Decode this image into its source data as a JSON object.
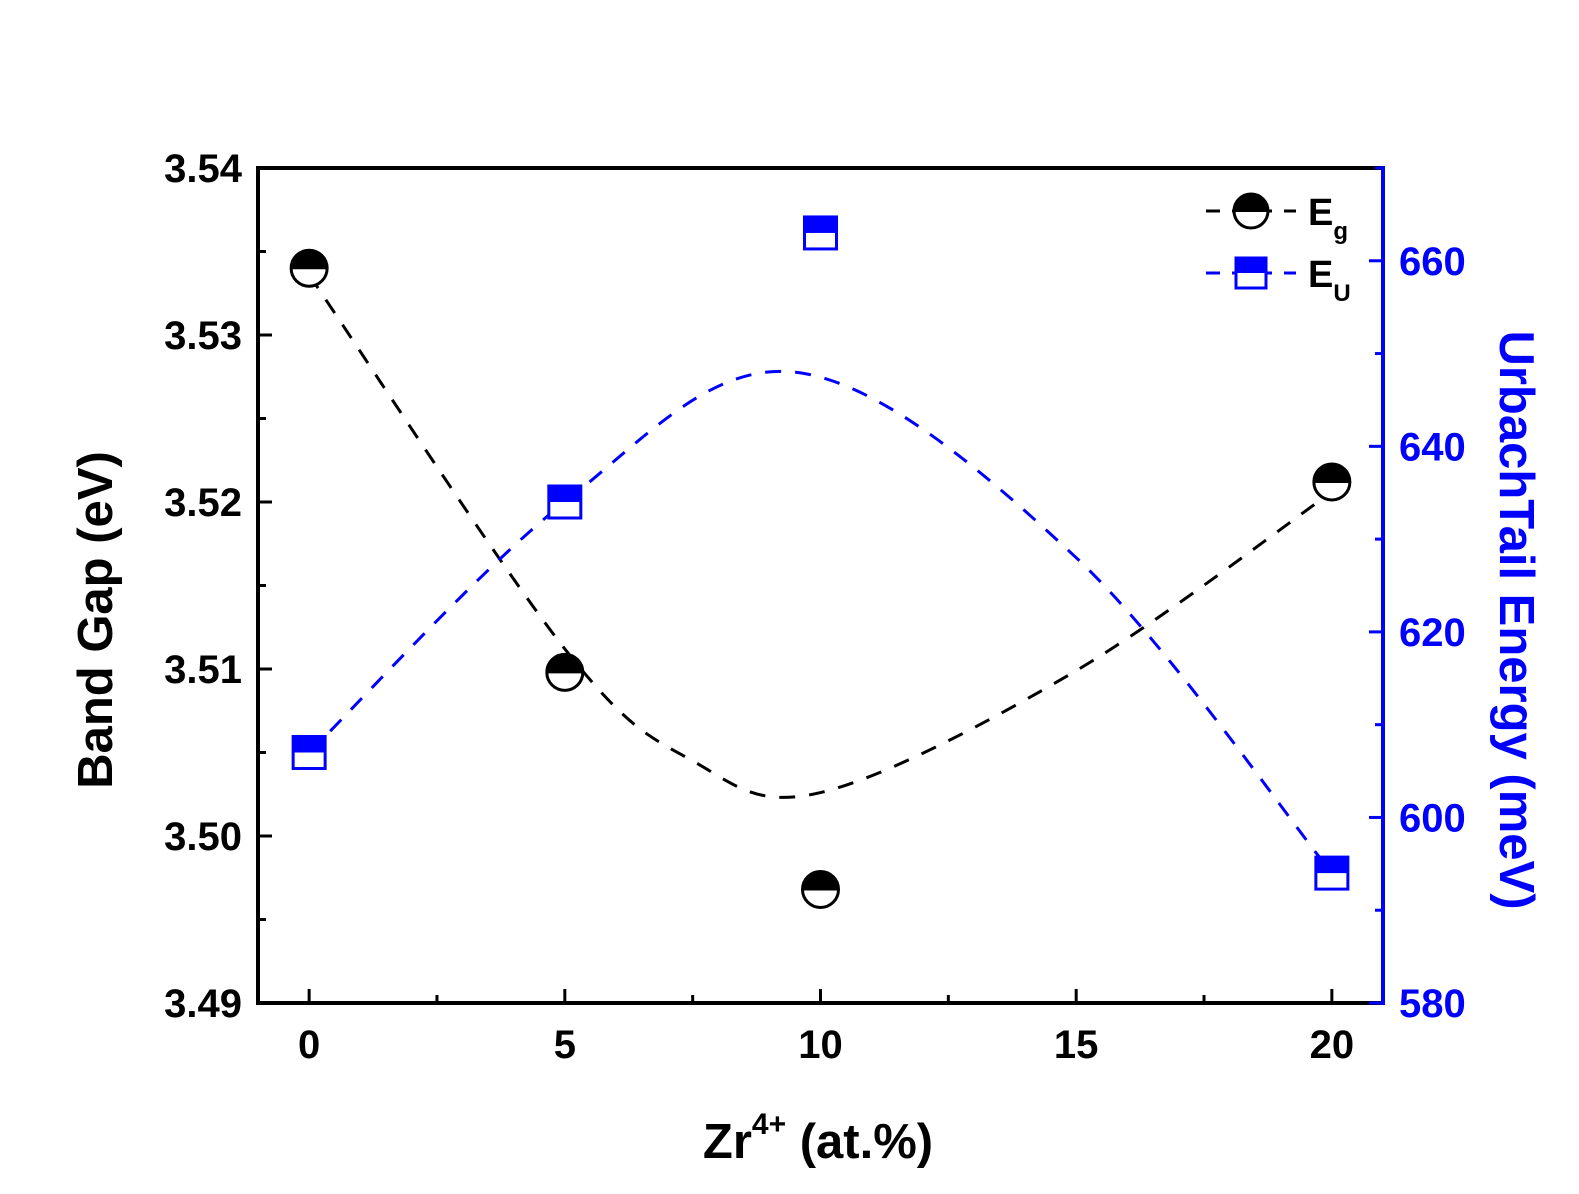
{
  "chart_data": {
    "type": "scatter",
    "xlabel": {
      "base": "Zr",
      "sup": "4+",
      "rest": " (at.%)"
    },
    "ylabel_left": "Band Gap (eV)",
    "ylabel_right": "UrbachTail Energy (meV)",
    "x_ticks": [
      0,
      5,
      10,
      15,
      20
    ],
    "y_left_ticks": [
      "3.49",
      "3.50",
      "3.51",
      "3.52",
      "3.53",
      "3.54"
    ],
    "y_right_ticks": [
      580,
      600,
      620,
      640,
      660
    ],
    "xlim": [
      -1,
      21
    ],
    "ylim_left": [
      3.49,
      3.54
    ],
    "ylim_right": [
      580,
      670
    ],
    "series": [
      {
        "name": "E",
        "subscript": "g",
        "axis": "left",
        "marker": "half-filled-circle",
        "color": "#000000",
        "x": [
          0,
          5,
          10,
          20
        ],
        "y": [
          3.534,
          3.5098,
          3.4968,
          3.5212
        ],
        "trend": {
          "x": [
            0,
            5,
            7.5,
            10,
            15,
            20
          ],
          "y": [
            3.5336,
            3.5112,
            3.5045,
            3.5026,
            3.5099,
            3.5206
          ]
        }
      },
      {
        "name": "E",
        "subscript": "U",
        "axis": "right",
        "marker": "half-filled-square",
        "color": "#0000ff",
        "x": [
          0,
          5,
          10,
          20
        ],
        "y": [
          607,
          634,
          663,
          594
        ],
        "trend": {
          "x": [
            0,
            5,
            9.5,
            15,
            20
          ],
          "y": [
            607,
            634,
            648,
            628,
            594
          ]
        }
      }
    ],
    "legend_position": "top-right",
    "grid": false
  }
}
